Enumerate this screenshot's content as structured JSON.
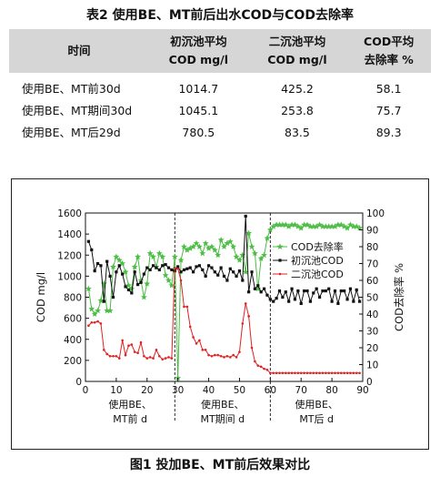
{
  "table": {
    "caption": "表2  使用BE、MT前后出水COD与COD去除率",
    "headers": [
      [
        "时间"
      ],
      [
        "初沉池平均",
        "COD mg/l"
      ],
      [
        "二沉池平均",
        "COD mg/l"
      ],
      [
        "COD平均",
        "去除率 %"
      ]
    ],
    "rows": [
      [
        "使用BE、MT前30d",
        "1014.7",
        "425.2",
        "58.1"
      ],
      [
        "使用BE、MT期间30d",
        "1045.1",
        "253.8",
        "75.7"
      ],
      [
        "使用BE、MT后29d",
        "780.5",
        "83.5",
        "89.3"
      ]
    ]
  },
  "figure": {
    "caption": "图1  投加BE、MT前后效果对比"
  },
  "chart_data": {
    "type": "line",
    "xlim": [
      0,
      90
    ],
    "ylim_left": [
      0,
      1600
    ],
    "ylim_right": [
      0,
      100
    ],
    "ylabel_left": "COD mg/l",
    "ylabel_right": "COD去除率 %",
    "x_ticks": [
      "0",
      "10",
      "20",
      "30",
      "40",
      "50",
      "60",
      "70",
      "80",
      "90"
    ],
    "y_left_ticks": [
      "0",
      "200",
      "400",
      "600",
      "800",
      "1000",
      "1200",
      "1400",
      "1600"
    ],
    "y_right_ticks": [
      "0",
      "10",
      "20",
      "30",
      "40",
      "50",
      "60",
      "70",
      "80",
      "90",
      "100"
    ],
    "period_dividers_x": [
      29,
      60
    ],
    "period_labels": [
      [
        "使用BE、",
        "MT前  d"
      ],
      [
        "使用BE、",
        "MT期间  d"
      ],
      [
        "使用BE、",
        "MT后  d"
      ]
    ],
    "legend_position": "top-right",
    "colors": {
      "removal": "#4dbd45",
      "primary": "#111111",
      "secondary": "#e02222"
    },
    "series": [
      {
        "name": "COD去除率",
        "axis": "right",
        "values": [
          55,
          43,
          40,
          42,
          48,
          58,
          42,
          42,
          68,
          74,
          72,
          70,
          65,
          57,
          55,
          68,
          74,
          60,
          50,
          58,
          76,
          74,
          68,
          76,
          74,
          63,
          60,
          57,
          74,
          2,
          72,
          80,
          78,
          79,
          80,
          82,
          80,
          76,
          82,
          79,
          80,
          78,
          75,
          84,
          80,
          82,
          83,
          80,
          74,
          72,
          75,
          65,
          88,
          80,
          76,
          55,
          73,
          75,
          85,
          90,
          92,
          93,
          93,
          93,
          93,
          92,
          93,
          93,
          92,
          91,
          93,
          93,
          92,
          92,
          92,
          93,
          92,
          92,
          92,
          92,
          92,
          93,
          93,
          92,
          91,
          93,
          92,
          92,
          91
        ]
      },
      {
        "name": "初沉池COD",
        "axis": "left",
        "values": [
          1330,
          1250,
          1050,
          1120,
          1100,
          760,
          1140,
          1000,
          800,
          1040,
          1100,
          1020,
          900,
          870,
          840,
          1040,
          920,
          940,
          1020,
          1080,
          1060,
          1100,
          1080,
          1060,
          1100,
          1110,
          1080,
          1060,
          1050,
          1090,
          1040,
          1060,
          1070,
          1080,
          1040,
          1090,
          1100,
          1060,
          1000,
          1100,
          1080,
          1040,
          1010,
          1080,
          1000,
          960,
          1070,
          1040,
          1000,
          1050,
          960,
          1570,
          850,
          1040,
          880,
          910,
          850,
          880,
          820,
          780,
          760,
          790,
          860,
          800,
          850,
          760,
          880,
          780,
          860,
          740,
          860,
          860,
          760,
          840,
          880,
          800,
          860,
          860,
          880,
          760,
          860,
          740,
          860,
          860,
          780,
          880,
          760,
          870,
          760
        ]
      },
      {
        "name": "二沉池COD",
        "axis": "left",
        "values": [
          530,
          560,
          560,
          570,
          550,
          300,
          260,
          240,
          240,
          240,
          220,
          390,
          250,
          340,
          350,
          280,
          270,
          370,
          240,
          220,
          230,
          220,
          300,
          240,
          210,
          220,
          230,
          220,
          1080,
          1070,
          960,
          710,
          710,
          520,
          420,
          360,
          390,
          300,
          300,
          250,
          240,
          250,
          250,
          240,
          230,
          240,
          230,
          250,
          230,
          280,
          550,
          740,
          620,
          320,
          190,
          150,
          140,
          120,
          110,
          80,
          80,
          80,
          80,
          80,
          80,
          80,
          80,
          80,
          80,
          80,
          80,
          80,
          80,
          80,
          80,
          80,
          80,
          80,
          80,
          80,
          80,
          80,
          80,
          80,
          80,
          80,
          80,
          80,
          80
        ]
      }
    ]
  }
}
